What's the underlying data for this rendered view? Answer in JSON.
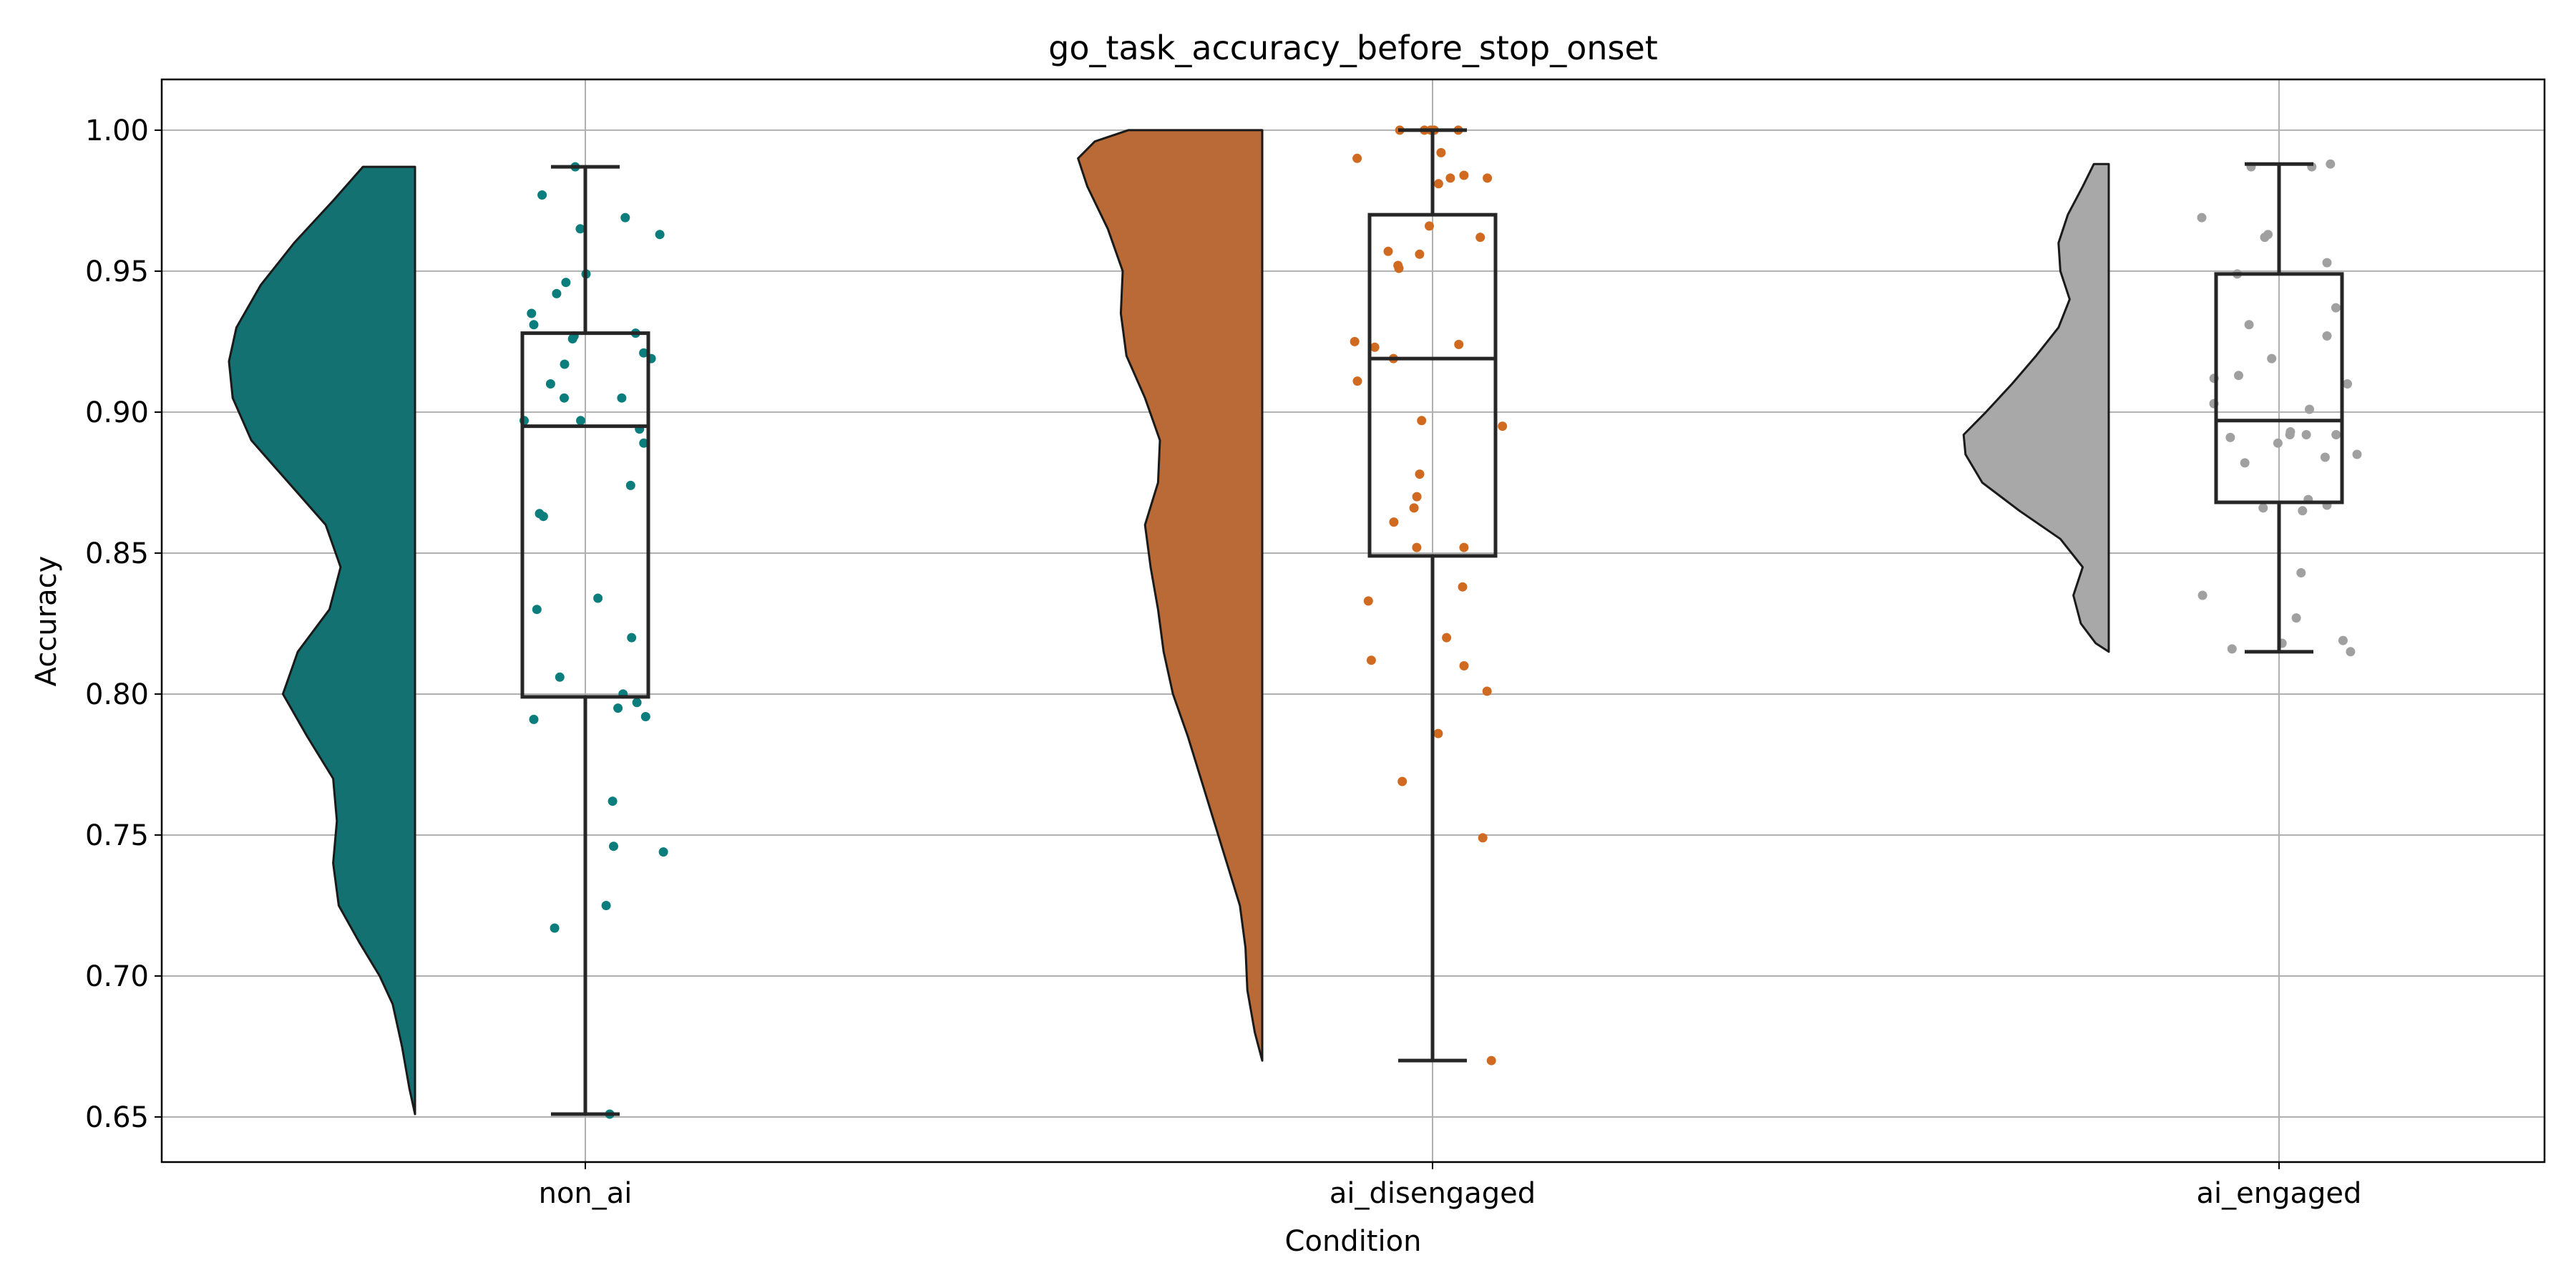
{
  "chart_data": {
    "type": "raincloud",
    "title": "go_task_accuracy_before_stop_onset",
    "xlabel": "Condition",
    "ylabel": "Accuracy",
    "ylim": [
      0.634,
      1.018
    ],
    "grid": true,
    "yticks": [
      {
        "value": 0.65,
        "label": "0.65"
      },
      {
        "value": 0.7,
        "label": "0.70"
      },
      {
        "value": 0.75,
        "label": "0.75"
      },
      {
        "value": 0.8,
        "label": "0.80"
      },
      {
        "value": 0.85,
        "label": "0.85"
      },
      {
        "value": 0.9,
        "label": "0.90"
      },
      {
        "value": 0.95,
        "label": "0.95"
      },
      {
        "value": 1.0,
        "label": "1.00"
      }
    ],
    "groups": [
      {
        "category": "non_ai",
        "color": "#137171",
        "point_color": "#0b7d7d",
        "box": {
          "min": 0.651,
          "q1": 0.799,
          "median": 0.895,
          "q3": 0.928,
          "max": 0.987
        },
        "violin": [
          {
            "y": 0.651,
            "w": 0.0
          },
          {
            "y": 0.66,
            "w": 0.03
          },
          {
            "y": 0.675,
            "w": 0.07
          },
          {
            "y": 0.69,
            "w": 0.12
          },
          {
            "y": 0.7,
            "w": 0.19
          },
          {
            "y": 0.712,
            "w": 0.3
          },
          {
            "y": 0.725,
            "w": 0.41
          },
          {
            "y": 0.74,
            "w": 0.44
          },
          {
            "y": 0.755,
            "w": 0.42
          },
          {
            "y": 0.77,
            "w": 0.44
          },
          {
            "y": 0.785,
            "w": 0.58
          },
          {
            "y": 0.8,
            "w": 0.71
          },
          {
            "y": 0.815,
            "w": 0.63
          },
          {
            "y": 0.83,
            "w": 0.46
          },
          {
            "y": 0.845,
            "w": 0.4
          },
          {
            "y": 0.86,
            "w": 0.48
          },
          {
            "y": 0.875,
            "w": 0.68
          },
          {
            "y": 0.89,
            "w": 0.88
          },
          {
            "y": 0.905,
            "w": 0.98
          },
          {
            "y": 0.918,
            "w": 1.0
          },
          {
            "y": 0.93,
            "w": 0.96
          },
          {
            "y": 0.945,
            "w": 0.83
          },
          {
            "y": 0.96,
            "w": 0.65
          },
          {
            "y": 0.975,
            "w": 0.44
          },
          {
            "y": 0.987,
            "w": 0.28
          }
        ],
        "points": [
          0.651,
          0.717,
          0.725,
          0.744,
          0.746,
          0.762,
          0.791,
          0.792,
          0.795,
          0.797,
          0.8,
          0.806,
          0.82,
          0.83,
          0.834,
          0.863,
          0.864,
          0.874,
          0.889,
          0.894,
          0.897,
          0.897,
          0.905,
          0.905,
          0.91,
          0.917,
          0.919,
          0.921,
          0.926,
          0.927,
          0.928,
          0.931,
          0.935,
          0.942,
          0.946,
          0.949,
          0.963,
          0.965,
          0.969,
          0.977,
          0.987
        ]
      },
      {
        "category": "ai_disengaged",
        "color": "#b96a37",
        "point_color": "#cf6a20",
        "box": {
          "min": 0.67,
          "q1": 0.849,
          "median": 0.919,
          "q3": 0.97,
          "max": 1.0
        },
        "violin": [
          {
            "y": 0.67,
            "w": 0.0
          },
          {
            "y": 0.68,
            "w": 0.04
          },
          {
            "y": 0.695,
            "w": 0.08
          },
          {
            "y": 0.71,
            "w": 0.09
          },
          {
            "y": 0.725,
            "w": 0.12
          },
          {
            "y": 0.74,
            "w": 0.19
          },
          {
            "y": 0.755,
            "w": 0.26
          },
          {
            "y": 0.77,
            "w": 0.33
          },
          {
            "y": 0.785,
            "w": 0.4
          },
          {
            "y": 0.8,
            "w": 0.48
          },
          {
            "y": 0.815,
            "w": 0.53
          },
          {
            "y": 0.83,
            "w": 0.56
          },
          {
            "y": 0.845,
            "w": 0.6
          },
          {
            "y": 0.86,
            "w": 0.63
          },
          {
            "y": 0.875,
            "w": 0.56
          },
          {
            "y": 0.89,
            "w": 0.55
          },
          {
            "y": 0.905,
            "w": 0.63
          },
          {
            "y": 0.92,
            "w": 0.73
          },
          {
            "y": 0.935,
            "w": 0.76
          },
          {
            "y": 0.95,
            "w": 0.75
          },
          {
            "y": 0.965,
            "w": 0.83
          },
          {
            "y": 0.98,
            "w": 0.94
          },
          {
            "y": 0.99,
            "w": 0.99
          },
          {
            "y": 0.996,
            "w": 0.9
          },
          {
            "y": 1.0,
            "w": 0.72
          }
        ],
        "points": [
          0.67,
          0.749,
          0.769,
          0.786,
          0.801,
          0.81,
          0.812,
          0.82,
          0.833,
          0.838,
          0.852,
          0.852,
          0.861,
          0.866,
          0.87,
          0.878,
          0.895,
          0.897,
          0.911,
          0.919,
          0.923,
          0.924,
          0.925,
          0.951,
          0.952,
          0.956,
          0.957,
          0.962,
          0.966,
          0.981,
          0.983,
          0.983,
          0.984,
          0.99,
          0.992,
          1.0,
          1.0,
          1.0,
          1.0,
          1.0
        ]
      },
      {
        "category": "ai_engaged",
        "color": "#a8a8a8",
        "point_color": "#a0a0a0",
        "box": {
          "min": 0.815,
          "q1": 0.868,
          "median": 0.897,
          "q3": 0.949,
          "max": 0.988
        },
        "violin": [
          {
            "y": 0.815,
            "w": 0.0
          },
          {
            "y": 0.818,
            "w": 0.07
          },
          {
            "y": 0.825,
            "w": 0.15
          },
          {
            "y": 0.835,
            "w": 0.19
          },
          {
            "y": 0.845,
            "w": 0.14
          },
          {
            "y": 0.855,
            "w": 0.26
          },
          {
            "y": 0.865,
            "w": 0.48
          },
          {
            "y": 0.875,
            "w": 0.68
          },
          {
            "y": 0.885,
            "w": 0.77
          },
          {
            "y": 0.892,
            "w": 0.78
          },
          {
            "y": 0.9,
            "w": 0.66
          },
          {
            "y": 0.91,
            "w": 0.52
          },
          {
            "y": 0.92,
            "w": 0.39
          },
          {
            "y": 0.93,
            "w": 0.27
          },
          {
            "y": 0.94,
            "w": 0.21
          },
          {
            "y": 0.95,
            "w": 0.26
          },
          {
            "y": 0.96,
            "w": 0.27
          },
          {
            "y": 0.97,
            "w": 0.22
          },
          {
            "y": 0.98,
            "w": 0.14
          },
          {
            "y": 0.988,
            "w": 0.08
          }
        ],
        "points": [
          0.815,
          0.816,
          0.818,
          0.819,
          0.827,
          0.835,
          0.843,
          0.865,
          0.866,
          0.867,
          0.869,
          0.882,
          0.884,
          0.885,
          0.889,
          0.891,
          0.892,
          0.892,
          0.892,
          0.893,
          0.901,
          0.903,
          0.91,
          0.912,
          0.913,
          0.919,
          0.927,
          0.931,
          0.937,
          0.949,
          0.953,
          0.962,
          0.963,
          0.969,
          0.987,
          0.987,
          0.988
        ]
      }
    ]
  }
}
